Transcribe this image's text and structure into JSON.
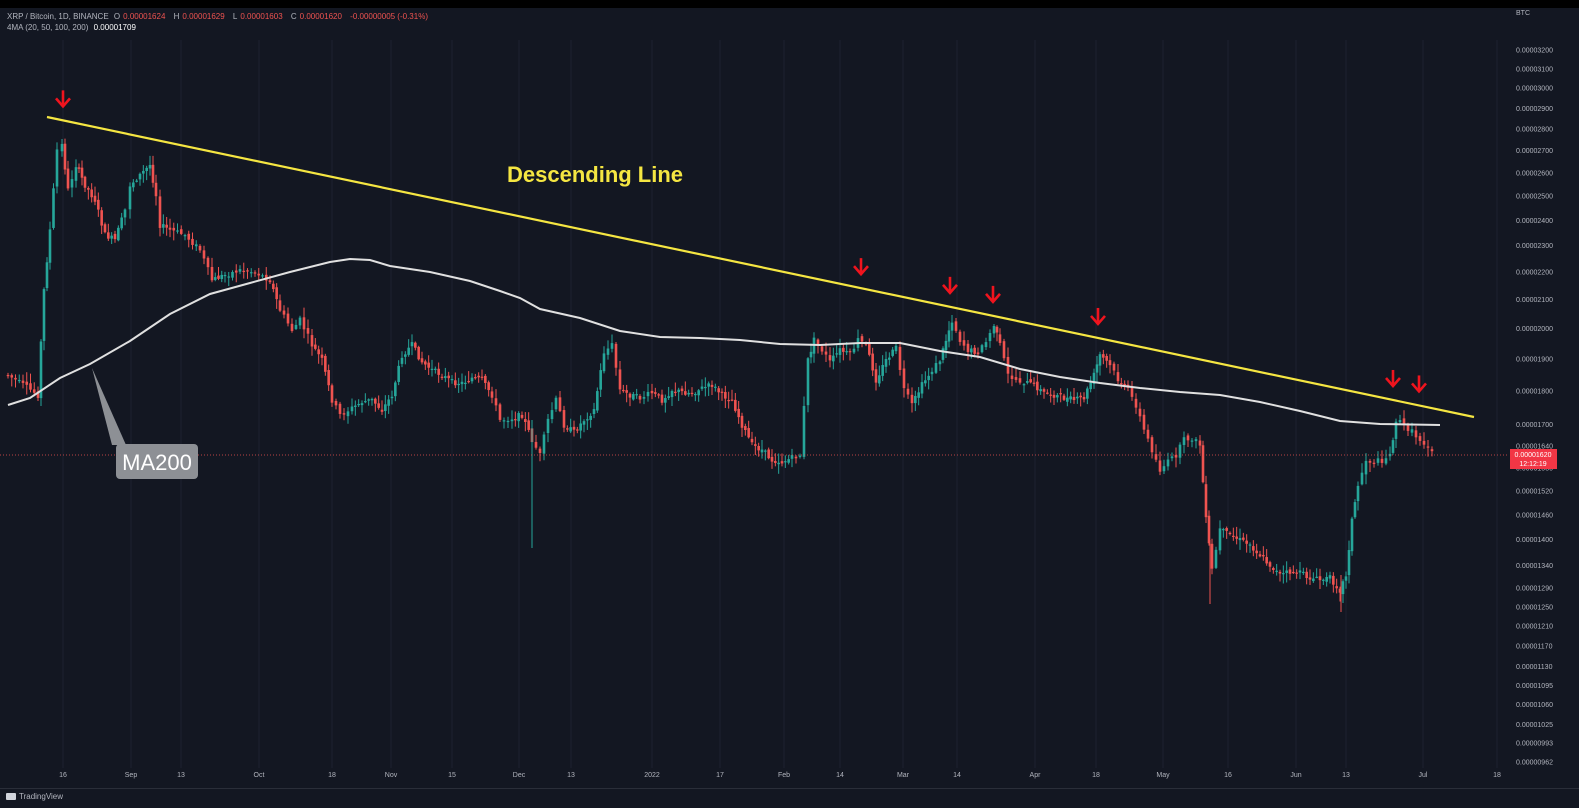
{
  "header": {
    "symbol": "XRP / Bitcoin, 1D, BINANCE",
    "open_label": "O",
    "open": "0.00001624",
    "high_label": "H",
    "high": "0.00001629",
    "low_label": "L",
    "low": "0.00001603",
    "close_label": "C",
    "close": "0.00001620",
    "change": "-0.00000005 (-0.31%)",
    "indicator_label": "4MA (20, 50, 100, 200)",
    "indicator_value": "0.00001709",
    "currency": "BTC"
  },
  "branding": {
    "logo_text": "TradingView"
  },
  "colors": {
    "background": "#131722",
    "up": "#26a69a",
    "down": "#ef5350",
    "trendline": "#f5e642",
    "ma200": "#e0e0e0",
    "arrow": "#f0141e",
    "price_tag": "#f23645"
  },
  "chart_data": {
    "type": "candlestick",
    "y_scale": "log",
    "y_ticks": [
      "0.00003200",
      "0.00003100",
      "0.00003000",
      "0.00002900",
      "0.00002800",
      "0.00002700",
      "0.00002600",
      "0.00002500",
      "0.00002400",
      "0.00002300",
      "0.00002200",
      "0.00002100",
      "0.00002000",
      "0.00001900",
      "0.00001800",
      "0.00001700",
      "0.00001640",
      "0.00001580",
      "0.00001520",
      "0.00001460",
      "0.00001400",
      "0.00001340",
      "0.00001290",
      "0.00001250",
      "0.00001210",
      "0.00001170",
      "0.00001130",
      "0.00001095",
      "0.00001060",
      "0.00001025",
      "0.00000993",
      "0.00000962"
    ],
    "x_ticks": [
      "16",
      "Sep",
      "13",
      "Oct",
      "18",
      "Nov",
      "15",
      "Dec",
      "13",
      "2022",
      "17",
      "Feb",
      "14",
      "Mar",
      "14",
      "Apr",
      "18",
      "May",
      "16",
      "Jun",
      "13",
      "Jul",
      "18"
    ],
    "last_price": "0.00001620",
    "countdown": "12:12:19",
    "annotations": {
      "trendline_label": "Descending Line",
      "ma_label": "MA200"
    },
    "series_ma200_points": [
      [
        8,
        405
      ],
      [
        30,
        398
      ],
      [
        60,
        378
      ],
      [
        90,
        364
      ],
      [
        130,
        341
      ],
      [
        170,
        314
      ],
      [
        210,
        294
      ],
      [
        250,
        283
      ],
      [
        290,
        272
      ],
      [
        330,
        262
      ],
      [
        350,
        259
      ],
      [
        370,
        260
      ],
      [
        390,
        266
      ],
      [
        430,
        272
      ],
      [
        470,
        281
      ],
      [
        500,
        291
      ],
      [
        520,
        298
      ],
      [
        540,
        309
      ],
      [
        580,
        318
      ],
      [
        620,
        331
      ],
      [
        660,
        337
      ],
      [
        700,
        338
      ],
      [
        740,
        340
      ],
      [
        780,
        344
      ],
      [
        820,
        345
      ],
      [
        860,
        343
      ],
      [
        900,
        343
      ],
      [
        940,
        351
      ],
      [
        980,
        357
      ],
      [
        1020,
        369
      ],
      [
        1060,
        377
      ],
      [
        1100,
        383
      ],
      [
        1140,
        388
      ],
      [
        1180,
        392
      ],
      [
        1220,
        395
      ],
      [
        1260,
        402
      ],
      [
        1300,
        411
      ],
      [
        1340,
        421
      ],
      [
        1380,
        424
      ],
      [
        1440,
        425
      ]
    ],
    "trendline_points": [
      [
        47,
        117
      ],
      [
        1474,
        417
      ]
    ],
    "resistance_touch_arrows_x": [
      63,
      861,
      950,
      993,
      1098,
      1393,
      1419
    ]
  }
}
